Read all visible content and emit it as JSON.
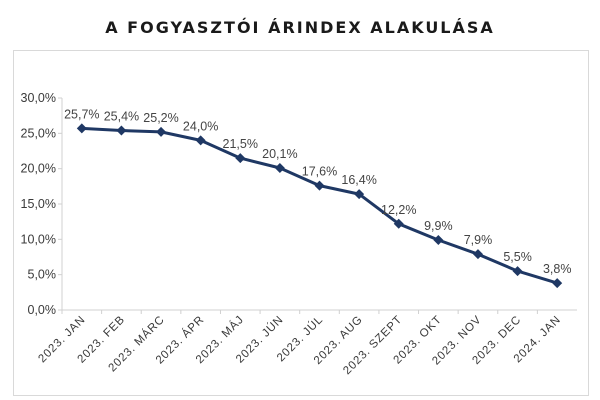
{
  "chart_data": {
    "type": "line",
    "title": "A FOGYASZTÓI ÁRINDEX ALAKULÁSA",
    "xlabel": "",
    "ylabel": "",
    "categories": [
      "2023. JAN",
      "2023. FEB",
      "2023. MÁRC",
      "2023. ÁPR",
      "2023. MÁJ",
      "2023. JÚN",
      "2023. JÚL",
      "2023. AUG",
      "2023. SZEPT",
      "2023. OKT",
      "2023. NOV",
      "2023. DEC",
      "2024. JAN"
    ],
    "values": [
      25.7,
      25.4,
      25.2,
      24.0,
      21.5,
      20.1,
      17.6,
      16.4,
      12.2,
      9.9,
      7.9,
      5.5,
      3.8
    ],
    "data_labels": [
      "25,7%",
      "25,4%",
      "25,2%",
      "24,0%",
      "21,5%",
      "20,1%",
      "17,6%",
      "16,4%",
      "12,2%",
      "9,9%",
      "7,9%",
      "5,5%",
      "3,8%"
    ],
    "y_ticks": [
      0,
      5,
      10,
      15,
      20,
      25,
      30
    ],
    "y_tick_labels": [
      "0,0%",
      "5,0%",
      "10,0%",
      "15,0%",
      "20,0%",
      "25,0%",
      "30,0%"
    ],
    "ylim": [
      0,
      30
    ],
    "grid": false,
    "line_color": "#1f3864",
    "marker": "diamond"
  }
}
